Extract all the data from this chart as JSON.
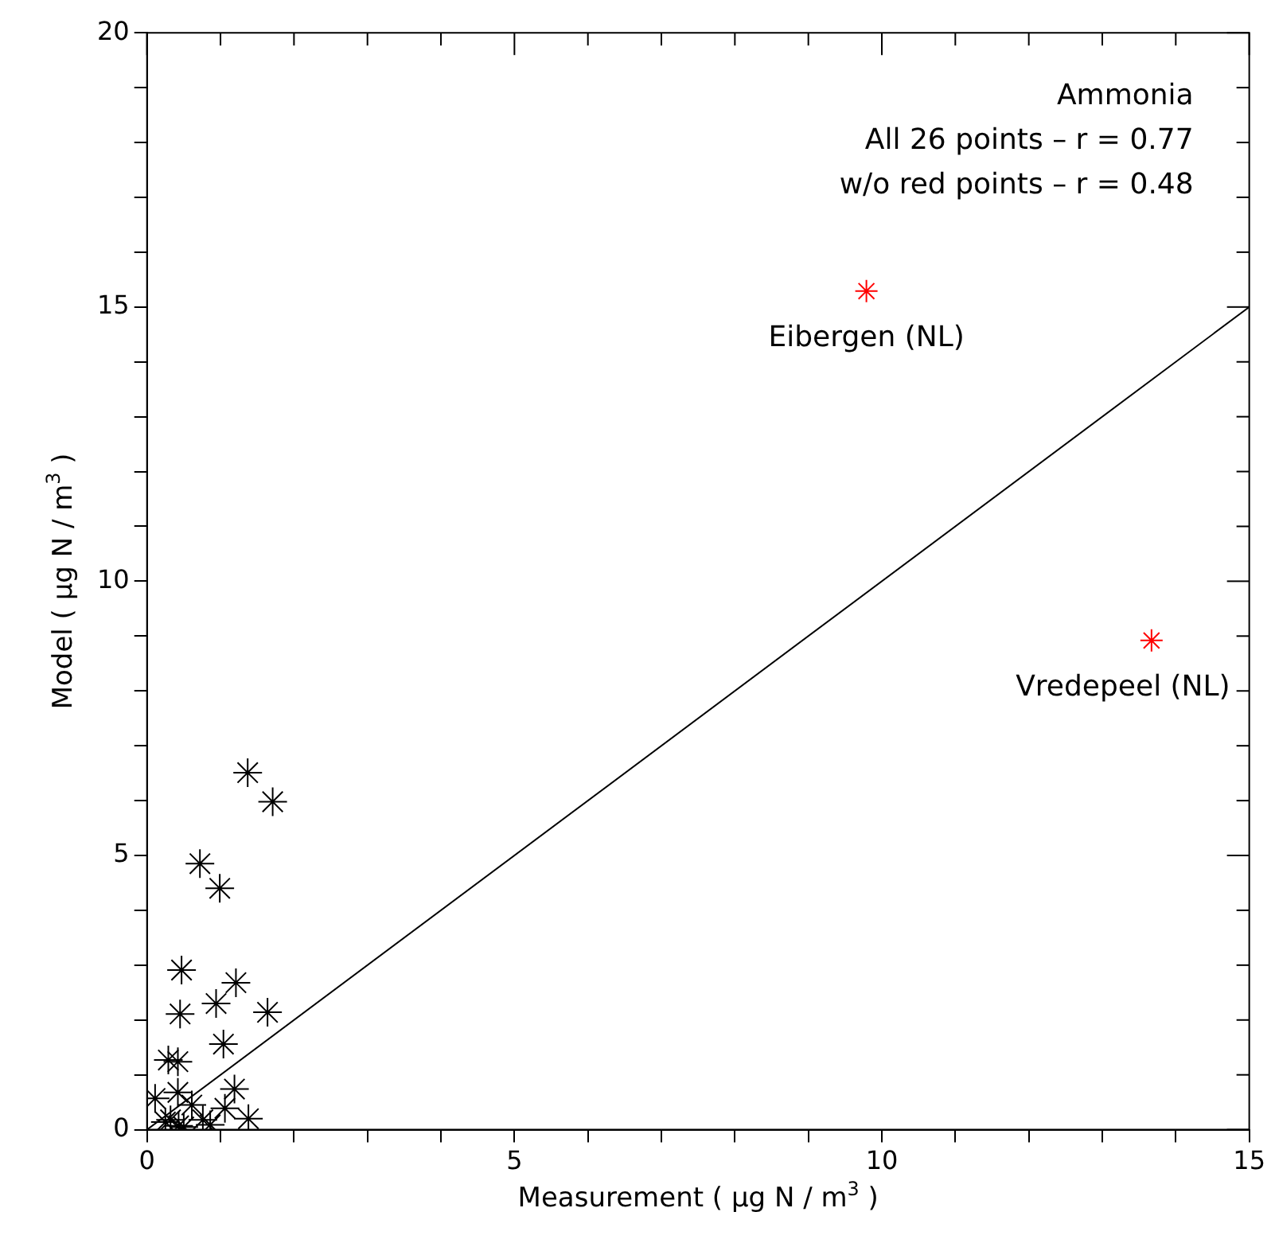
{
  "chart_data": {
    "type": "scatter",
    "xlabel": "Measurement ( μg N / m$^{3}$ )",
    "ylabel": "Model ( μg N / m$^{3}$ )",
    "series": [
      {
        "color": "#000000",
        "marker": "cross",
        "x": [
          1.37,
          1.71,
          0.72,
          0.99,
          0.47,
          1.21,
          0.45,
          0.94,
          1.64,
          1.04,
          0.29,
          0.42,
          0.11,
          0.42,
          1.19,
          1.06,
          1.38,
          0.61,
          0.76,
          0.32,
          0.43,
          0.86,
          0.5,
          0.25
        ],
        "values": [
          6.51,
          5.98,
          4.85,
          4.4,
          2.91,
          2.68,
          2.11,
          2.3,
          2.14,
          1.56,
          1.27,
          1.24,
          0.57,
          0.68,
          0.74,
          0.39,
          0.2,
          0.45,
          0.18,
          0.18,
          0.07,
          0.09,
          0.05,
          0.14
        ]
      },
      {
        "color": "#ff0000",
        "marker": "cross",
        "x": [
          9.79,
          13.67
        ],
        "values": [
          15.29,
          8.92
        ]
      },
      {
        "type": "line",
        "color": "#000000",
        "marker": "none",
        "line_style": "solid",
        "x": [
          0,
          15
        ],
        "values": [
          0,
          15
        ]
      }
    ],
    "xlim": [
      0,
      15
    ],
    "ylim": [
      0,
      20
    ],
    "xticks": [
      0,
      {
        "value": 1,
        "label": null
      },
      {
        "value": 2,
        "label": null
      },
      {
        "value": 3,
        "label": null
      },
      {
        "value": 4,
        "label": null
      },
      5,
      {
        "value": 6,
        "label": null
      },
      {
        "value": 7,
        "label": null
      },
      {
        "value": 8,
        "label": null
      },
      {
        "value": 9,
        "label": null
      },
      10,
      {
        "value": 11,
        "label": null
      },
      {
        "value": 12,
        "label": null
      },
      {
        "value": 13,
        "label": null
      },
      {
        "value": 14,
        "label": null
      },
      15
    ],
    "yticks": [
      0,
      {
        "value": 1,
        "label": null
      },
      {
        "value": 2,
        "label": null
      },
      {
        "value": 3,
        "label": null
      },
      {
        "value": 4,
        "label": null
      },
      5,
      {
        "value": 6,
        "label": null
      },
      {
        "value": 7,
        "label": null
      },
      {
        "value": 8,
        "label": null
      },
      {
        "value": 9,
        "label": null
      },
      10,
      {
        "value": 11,
        "label": null
      },
      {
        "value": 12,
        "label": null
      },
      {
        "value": 13,
        "label": null
      },
      {
        "value": 14,
        "label": null
      },
      15,
      {
        "value": 16,
        "label": null
      },
      {
        "value": 17,
        "label": null
      },
      {
        "value": 18,
        "label": null
      },
      {
        "value": 19,
        "label": null
      },
      20
    ],
    "grid": false,
    "legend": false,
    "annotations": [
      "Ammonia",
      "All 26 points – r = 0.77",
      "w/o red points – r = 0.48",
      {
        "text": "Eibergen (NL)",
        "x": 9.79,
        "y": 15.29
      },
      {
        "text": "Vredepeel (NL)",
        "x": 13.67,
        "y": 8.92
      }
    ]
  }
}
